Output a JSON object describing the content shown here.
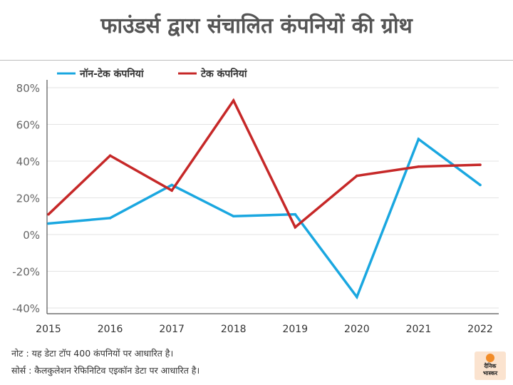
{
  "title": "फाउंडर्स द्वारा संचालित कंपनियों की ग्रोथ",
  "note": "नोट : यह डेटा टॉप 400 कंपनियों पर आधारित है।",
  "source": "सोर्स : कैलकुलेशन रेफिनिटिव एइकॉन डेटा पर आधारित है।",
  "logo": {
    "line1": "दैनिक",
    "line2": "भास्कर"
  },
  "chart_data": {
    "type": "line",
    "title": "फाउंडर्स द्वारा संचालित कंपनियों की ग्रोथ",
    "x": [
      "2015",
      "2016",
      "2017",
      "2018",
      "2019",
      "2020",
      "2021",
      "2022"
    ],
    "y_ticks": [
      "80%",
      "60%",
      "40%",
      "20%",
      "0%",
      "-20%",
      "-40%"
    ],
    "ylim": [
      -40,
      80
    ],
    "y_unit": "%",
    "grid": "horizontal",
    "legend_position": "top-left",
    "series": [
      {
        "name": "नॉन-टेक कंपनियां",
        "color": "#1aa7e0",
        "values": [
          6,
          9,
          27,
          10,
          11,
          -34,
          52,
          27
        ]
      },
      {
        "name": "टेक कंपनियां",
        "color": "#c62828",
        "values": [
          11,
          43,
          24,
          73,
          4,
          32,
          37,
          38
        ]
      }
    ]
  }
}
